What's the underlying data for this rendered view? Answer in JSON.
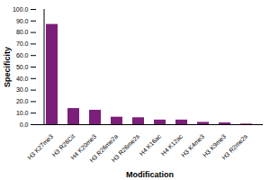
{
  "chart_data": {
    "type": "bar",
    "x_label": "Modification",
    "y_label": "Specificity",
    "categories": [
      "H3 K27me3",
      "H3 R26Cit",
      "H4 K20me3",
      "H3 R26me2a",
      "H3 R26me2s",
      "H4 K16ac",
      "H4 K12ac",
      "H3 K4me3",
      "H3 K9me3",
      "H3 R2me2s"
    ],
    "values": [
      87,
      14,
      12.5,
      6.5,
      6,
      4,
      4,
      2,
      1.5,
      0.5
    ],
    "color": "#7b1f7b",
    "ylim": [
      0,
      100
    ],
    "yticks": [
      {
        "value": 0,
        "label": "0.0"
      },
      {
        "value": 10,
        "label": "10.0"
      },
      {
        "value": 20,
        "label": "20.0"
      },
      {
        "value": 30,
        "label": "30.0"
      },
      {
        "value": 40,
        "label": "40.0"
      },
      {
        "value": 50,
        "label": "50.0"
      },
      {
        "value": 60,
        "label": "60.0"
      },
      {
        "value": 70,
        "label": "70.0"
      },
      {
        "value": 80,
        "label": "80.0"
      },
      {
        "value": 90,
        "label": "90.0"
      },
      {
        "value": 100,
        "label": "100.0"
      }
    ],
    "grid": false
  }
}
